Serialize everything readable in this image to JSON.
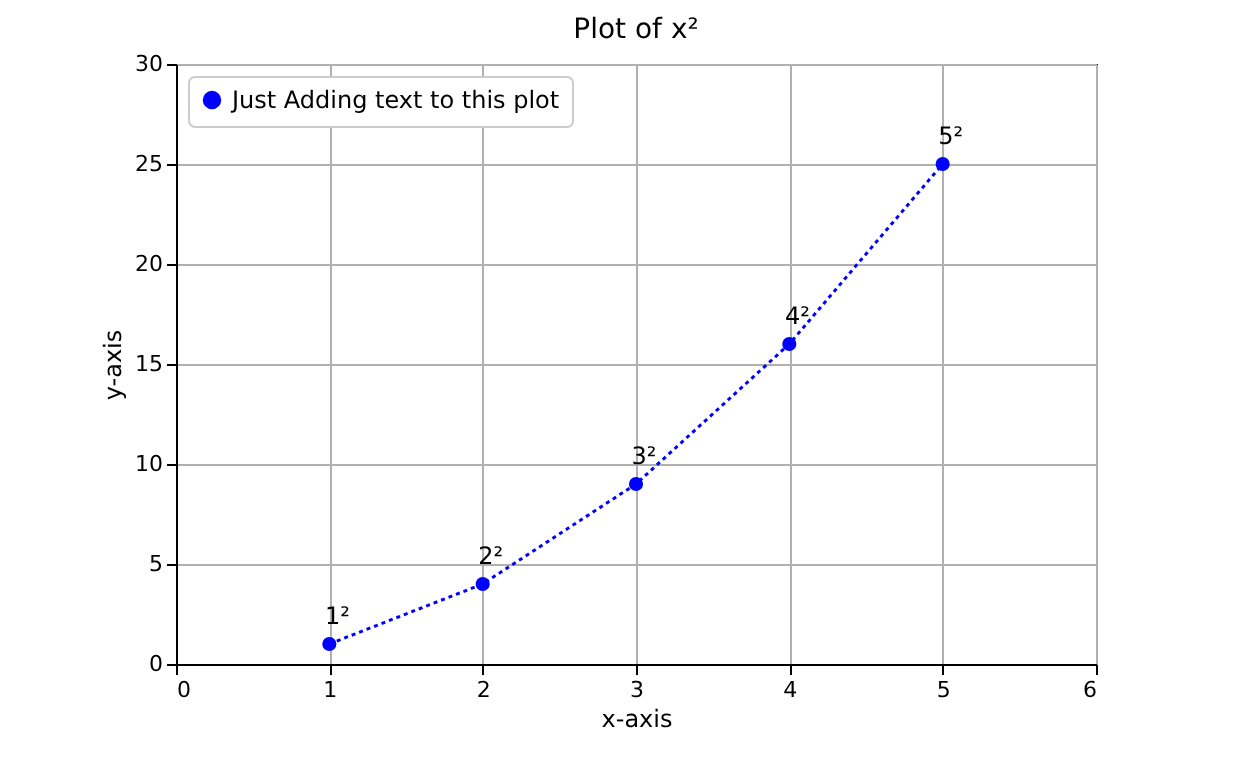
{
  "chart_data": {
    "type": "line",
    "title": "Plot of x²",
    "xlabel": "x-axis",
    "ylabel": "y-axis",
    "x": [
      1,
      2,
      3,
      4,
      5
    ],
    "series": [
      {
        "name": "Just Adding text to this plot",
        "color": "#0000ff",
        "values": [
          1,
          4,
          9,
          16,
          25
        ]
      }
    ],
    "xlim": [
      0,
      6
    ],
    "xticks": [
      0,
      1,
      2,
      3,
      4,
      5,
      6
    ],
    "ylim": [
      0,
      30
    ],
    "yticks": [
      0,
      5,
      10,
      15,
      20,
      25,
      30
    ],
    "grid": true,
    "legend": "top left",
    "marker": "circle",
    "line_style": "dotted",
    "annotations": [
      {
        "text": "1²",
        "x": 1,
        "y": 1
      },
      {
        "text": "2²",
        "x": 2,
        "y": 4
      },
      {
        "text": "3²",
        "x": 3,
        "y": 9
      },
      {
        "text": "4²",
        "x": 4,
        "y": 16
      },
      {
        "text": "5²",
        "x": 5,
        "y": 25
      }
    ]
  }
}
